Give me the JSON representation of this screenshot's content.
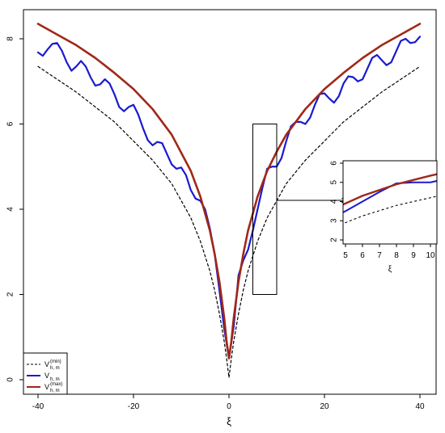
{
  "chart_data": {
    "type": "line",
    "xlabel": "ξ",
    "ylabel": "",
    "xlim": [
      -40,
      40
    ],
    "ylim": [
      0,
      8.5
    ],
    "xticks": [
      "-40",
      "-20",
      "0",
      "20",
      "40"
    ],
    "xtick_values": [
      -40,
      -20,
      0,
      20,
      40
    ],
    "yticks": [
      "0",
      "2",
      "4",
      "6",
      "8"
    ],
    "ytick_values": [
      0,
      2,
      4,
      6,
      8
    ],
    "grid": false,
    "legend_position": "bottom-left",
    "series": [
      {
        "key": "vmin",
        "name": "V",
        "name_sub": "h, m",
        "name_sup": "(min)",
        "color": "#000000",
        "style": "dashed",
        "x": [
          -40,
          -36,
          -32,
          -28,
          -24,
          -20,
          -16,
          -12,
          -8,
          -6,
          -4,
          -3,
          -2,
          -1,
          -0.5,
          0,
          0.5,
          1,
          2,
          3,
          4,
          6,
          8,
          12,
          16,
          20,
          24,
          28,
          32,
          36,
          40
        ],
        "y": [
          7.35,
          7.05,
          6.75,
          6.4,
          6.05,
          5.6,
          5.15,
          4.6,
          3.8,
          3.25,
          2.55,
          2.1,
          1.55,
          0.9,
          0.5,
          0.05,
          0.5,
          0.9,
          1.55,
          2.1,
          2.55,
          3.25,
          3.8,
          4.6,
          5.15,
          5.6,
          6.05,
          6.4,
          6.75,
          7.05,
          7.35
        ]
      },
      {
        "key": "v",
        "name": "V",
        "name_sub": "h, m",
        "name_sup": "",
        "color": "#1a1ad0",
        "style": "solid",
        "x": [
          -40,
          -39,
          -38,
          -37,
          -36,
          -35,
          -34,
          -33,
          -32,
          -31,
          -30,
          -29,
          -28,
          -27,
          -26,
          -25,
          -24,
          -23,
          -22,
          -21,
          -20,
          -19,
          -18,
          -17,
          -16,
          -15,
          -14,
          -13,
          -12,
          -11,
          -10,
          -9,
          -8,
          -7,
          -6,
          -5,
          -4,
          -3,
          -2,
          -1,
          0,
          1,
          2,
          3,
          4,
          5,
          6,
          7,
          8,
          9,
          10,
          11,
          12,
          13,
          14,
          15,
          16,
          17,
          18,
          19,
          20,
          21,
          22,
          23,
          24,
          25,
          26,
          27,
          28,
          29,
          30,
          31,
          32,
          33,
          34,
          35,
          36,
          37,
          38,
          39,
          40
        ],
        "y": [
          7.68,
          7.6,
          7.75,
          7.88,
          7.9,
          7.72,
          7.45,
          7.25,
          7.35,
          7.48,
          7.35,
          7.1,
          6.9,
          6.93,
          7.05,
          6.95,
          6.7,
          6.4,
          6.3,
          6.4,
          6.45,
          6.22,
          5.9,
          5.62,
          5.5,
          5.58,
          5.55,
          5.3,
          5.05,
          4.95,
          4.98,
          4.8,
          4.45,
          4.25,
          4.2,
          4.0,
          3.55,
          2.95,
          2.1,
          1.2,
          0.5,
          1.25,
          2.45,
          2.8,
          3.05,
          3.5,
          4.0,
          4.5,
          4.95,
          5.0,
          5.0,
          5.2,
          5.6,
          5.95,
          6.05,
          6.05,
          6.0,
          6.15,
          6.45,
          6.7,
          6.72,
          6.6,
          6.5,
          6.65,
          6.95,
          7.12,
          7.1,
          7.0,
          7.05,
          7.3,
          7.55,
          7.62,
          7.5,
          7.38,
          7.45,
          7.7,
          7.95,
          8.0,
          7.9,
          7.92,
          8.05
        ]
      },
      {
        "key": "vmax",
        "name": "V",
        "name_sub": "h, m",
        "name_sup": "(max)",
        "color": "#a02818",
        "style": "solid",
        "x": [
          -40,
          -36,
          -32,
          -28,
          -24,
          -20,
          -16,
          -12,
          -8,
          -6,
          -4,
          -3,
          -2,
          -1,
          -0.5,
          0,
          0.5,
          1,
          2,
          3,
          4,
          6,
          8,
          10,
          12,
          16,
          20,
          24,
          28,
          32,
          36,
          40
        ],
        "y": [
          8.35,
          8.1,
          7.85,
          7.55,
          7.2,
          6.82,
          6.35,
          5.75,
          4.9,
          4.3,
          3.5,
          2.95,
          2.3,
          1.45,
          0.9,
          0.5,
          0.9,
          1.45,
          2.3,
          2.95,
          3.5,
          4.3,
          4.9,
          5.35,
          5.75,
          6.35,
          6.82,
          7.2,
          7.55,
          7.85,
          8.1,
          8.35
        ]
      }
    ],
    "highlight_box": {
      "xlim": [
        5,
        10
      ],
      "ylim": [
        2,
        6
      ]
    },
    "inset": {
      "xlabel": "ξ",
      "xlim": [
        5,
        10
      ],
      "ylim": [
        1.8,
        6.2
      ],
      "xticks": [
        "5",
        "6",
        "7",
        "8",
        "9",
        "10"
      ],
      "xtick_values": [
        5,
        6,
        7,
        8,
        9,
        10
      ],
      "yticks": [
        "2",
        "3",
        "4",
        "5",
        "6"
      ],
      "ytick_values": [
        2,
        3,
        4,
        5,
        6
      ]
    }
  }
}
